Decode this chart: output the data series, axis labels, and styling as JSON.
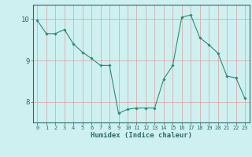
{
  "x": [
    0,
    1,
    2,
    3,
    4,
    5,
    6,
    7,
    8,
    9,
    10,
    11,
    12,
    13,
    14,
    15,
    16,
    17,
    18,
    19,
    20,
    21,
    22,
    23
  ],
  "y": [
    9.97,
    9.65,
    9.65,
    9.75,
    9.4,
    9.2,
    9.05,
    8.88,
    8.88,
    7.72,
    7.82,
    7.85,
    7.85,
    7.85,
    8.55,
    8.88,
    10.05,
    10.1,
    9.55,
    9.38,
    9.18,
    8.62,
    8.58,
    8.08
  ],
  "line_color": "#2e8b74",
  "marker": "D",
  "marker_size": 1.8,
  "line_width": 0.8,
  "bg_color": "#cff0f0",
  "grid_color_v": "#d9a0a0",
  "grid_color_h": "#d9a0a0",
  "xlabel": "Humidex (Indice chaleur)",
  "xlim": [
    -0.5,
    23.5
  ],
  "ylim": [
    7.5,
    10.35
  ],
  "yticks": [
    8,
    9,
    10
  ],
  "ytick_labels": [
    "8",
    "9",
    "10"
  ],
  "xticks": [
    0,
    1,
    2,
    3,
    4,
    5,
    6,
    7,
    8,
    9,
    10,
    11,
    12,
    13,
    14,
    15,
    16,
    17,
    18,
    19,
    20,
    21,
    22,
    23
  ],
  "tick_color": "#2e6b6b",
  "label_color": "#2e6b6b",
  "spine_color": "#2e6b6b",
  "xlabel_fontsize": 6.5,
  "xtick_fontsize": 5.0,
  "ytick_fontsize": 6.5
}
